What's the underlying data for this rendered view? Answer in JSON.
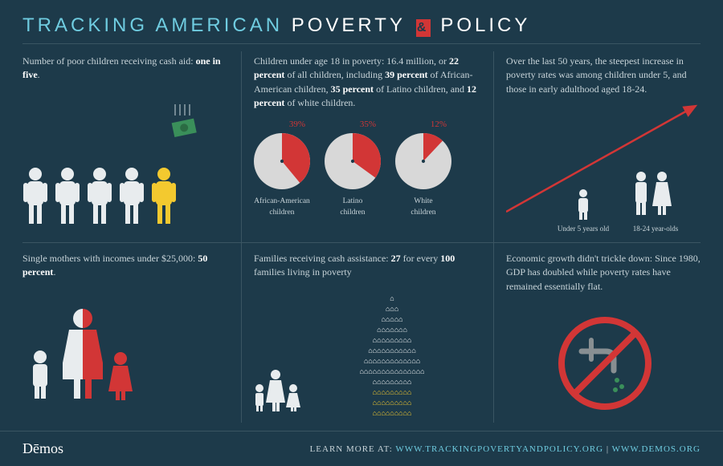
{
  "background_color": "#1d3a4a",
  "accent_cyan": "#6fcce0",
  "accent_red": "#d23636",
  "accent_yellow": "#f3c92f",
  "icon_white": "#e8ecee",
  "title": {
    "part1": "TRACKING AMERICAN",
    "part2": "POVERTY",
    "amp": "&",
    "part3": "POLICY"
  },
  "panels": {
    "top_left": {
      "text_a": "Number of poor children receiving cash aid: ",
      "text_b": "one in five",
      "text_c": ".",
      "people_count": 5,
      "highlight_index": 4
    },
    "top_mid": {
      "text": "Children under age 18 in poverty: 16.4 million, or <b>22 percent</b> of all children, including <b>39 percent</b> of African-American children, <b>35 percent</b> of Latino children, and <b>12 percent</b> of white children.",
      "pies": [
        {
          "label": "African-American\nchildren",
          "pct": 39,
          "pct_label": "39%"
        },
        {
          "label": "Latino\nchildren",
          "pct": 35,
          "pct_label": "35%"
        },
        {
          "label": "White\nchildren",
          "pct": 12,
          "pct_label": "12%"
        }
      ],
      "pie_fill": "#d8d8d8",
      "pie_slice": "#d23636",
      "pie_size": 70
    },
    "top_right": {
      "text": "Over the last 50 years, the steepest increase in poverty rates was among children under 5, and those in early adulthood aged 18-24.",
      "label_left": "Under 5 years old",
      "label_right": "18-24 year-olds"
    },
    "bot_left": {
      "text": "Single mothers with incomes under $25,000: <b>50 percent</b>."
    },
    "bot_mid": {
      "text": "Families receiving cash assistance: <b>27</b> for every <b>100</b> families living in poverty",
      "total_houses": 100,
      "yellow_houses": 27
    },
    "bot_right": {
      "text": "Economic growth didn't trickle down: Since 1980, GDP has doubled while poverty rates have remained essentially flat."
    }
  },
  "footer": {
    "brand": "Dēmos",
    "learn": "LEARN MORE AT:",
    "url1": "WWW.TRACKINGPOVERTYANDPOLICY.ORG",
    "sep": " | ",
    "url2": "WWW.DEMOS.ORG"
  }
}
